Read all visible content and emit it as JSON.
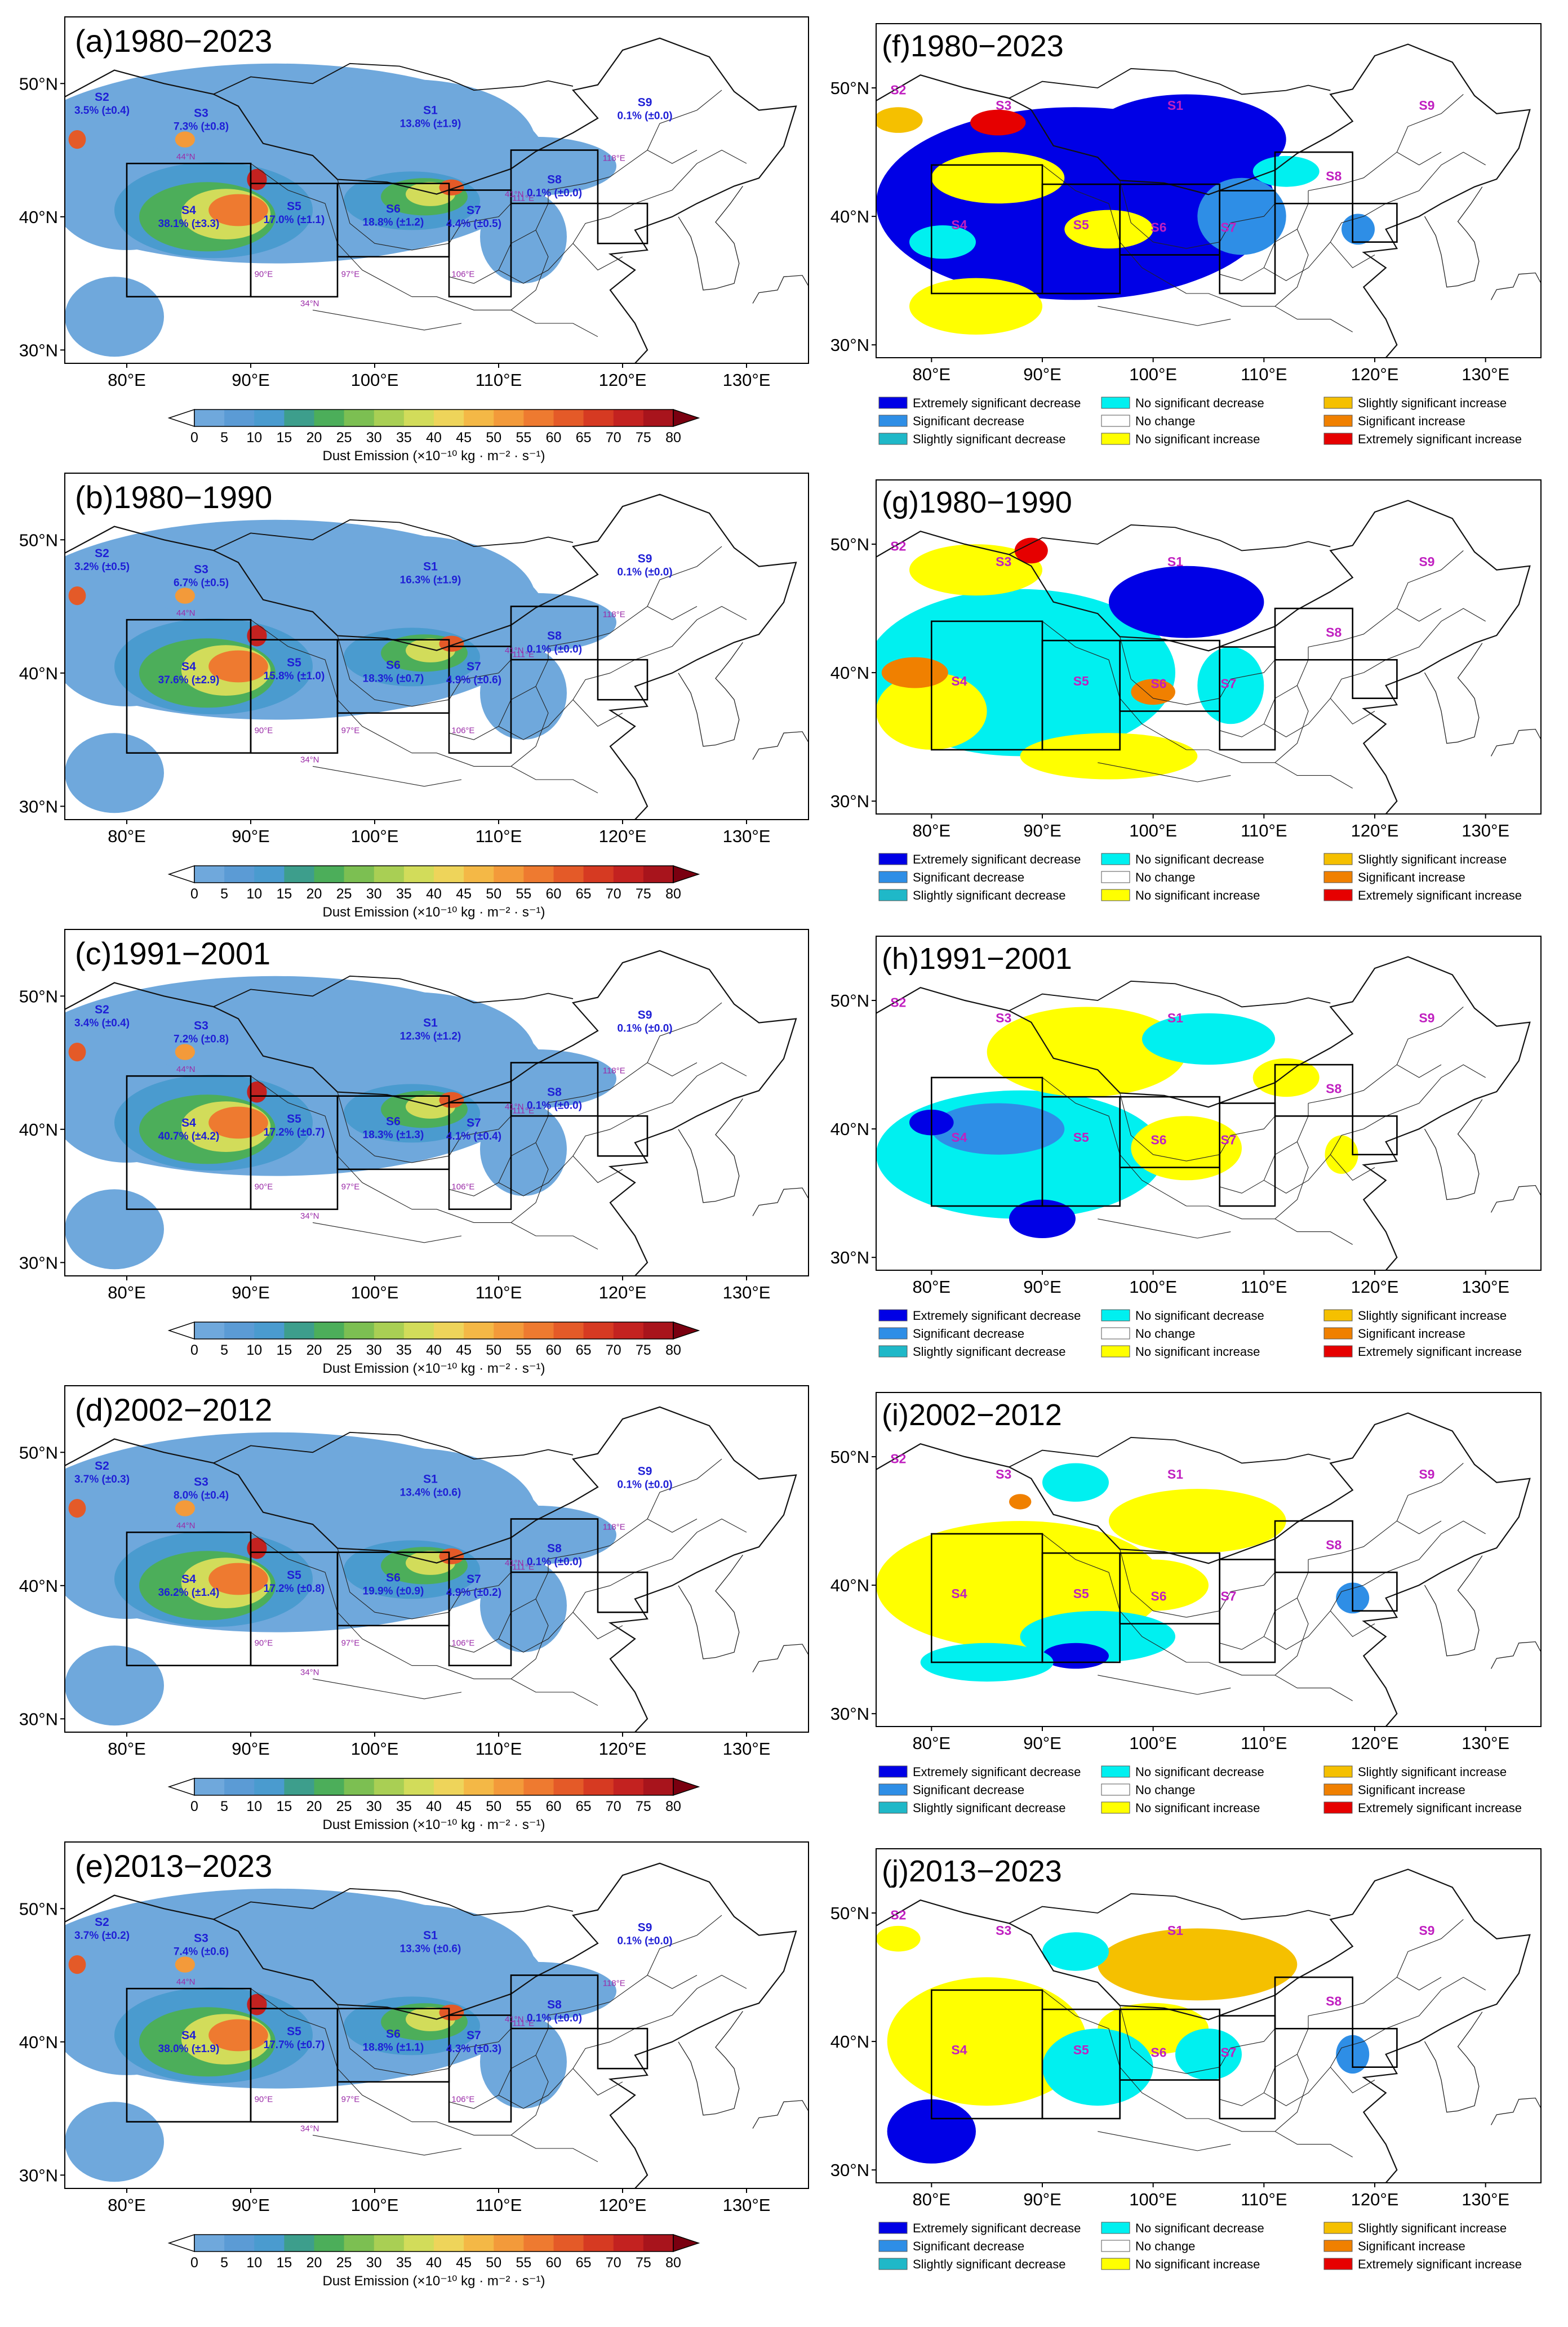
{
  "left_panels": [
    {
      "title": "(a)1980−2023",
      "regions": [
        {
          "name": "S1",
          "label": "13.8% (±1.9)"
        },
        {
          "name": "S2",
          "label": "3.5% (±0.4)"
        },
        {
          "name": "S3",
          "label": "7.3% (±0.8)"
        },
        {
          "name": "S4",
          "label": "38.1% (±3.3)"
        },
        {
          "name": "S5",
          "label": "17.0% (±1.1)"
        },
        {
          "name": "S6",
          "label": "18.8% (±1.2)"
        },
        {
          "name": "S7",
          "label": "4.4% (±0.5)"
        },
        {
          "name": "S8",
          "label": "0.1% (±0.0)"
        },
        {
          "name": "S9",
          "label": "0.1% (±0.0)"
        }
      ]
    },
    {
      "title": "(b)1980−1990",
      "regions": [
        {
          "name": "S1",
          "label": "16.3% (±1.9)"
        },
        {
          "name": "S2",
          "label": "3.2% (±0.5)"
        },
        {
          "name": "S3",
          "label": "6.7% (±0.5)"
        },
        {
          "name": "S4",
          "label": "37.6% (±2.9)"
        },
        {
          "name": "S5",
          "label": "15.8% (±1.0)"
        },
        {
          "name": "S6",
          "label": "18.3% (±0.7)"
        },
        {
          "name": "S7",
          "label": "4.9% (±0.6)"
        },
        {
          "name": "S8",
          "label": "0.1% (±0.0)"
        },
        {
          "name": "S9",
          "label": "0.1% (±0.0)"
        }
      ]
    },
    {
      "title": "(c)1991−2001",
      "regions": [
        {
          "name": "S1",
          "label": "12.3% (±1.2)"
        },
        {
          "name": "S2",
          "label": "3.4% (±0.4)"
        },
        {
          "name": "S3",
          "label": "7.2% (±0.8)"
        },
        {
          "name": "S4",
          "label": "40.7% (±4.2)"
        },
        {
          "name": "S5",
          "label": "17.2% (±0.7)"
        },
        {
          "name": "S6",
          "label": "18.3% (±1.3)"
        },
        {
          "name": "S7",
          "label": "4.1% (±0.4)"
        },
        {
          "name": "S8",
          "label": "0.1% (±0.0)"
        },
        {
          "name": "S9",
          "label": "0.1% (±0.0)"
        }
      ]
    },
    {
      "title": "(d)2002−2012",
      "regions": [
        {
          "name": "S1",
          "label": "13.4% (±0.6)"
        },
        {
          "name": "S2",
          "label": "3.7% (±0.3)"
        },
        {
          "name": "S3",
          "label": "8.0% (±0.4)"
        },
        {
          "name": "S4",
          "label": "36.2% (±1.4)"
        },
        {
          "name": "S5",
          "label": "17.2% (±0.8)"
        },
        {
          "name": "S6",
          "label": "19.9% (±0.9)"
        },
        {
          "name": "S7",
          "label": "4.9% (±0.2)"
        },
        {
          "name": "S8",
          "label": "0.1% (±0.0)"
        },
        {
          "name": "S9",
          "label": "0.1% (±0.0)"
        }
      ]
    },
    {
      "title": "(e)2013−2023",
      "regions": [
        {
          "name": "S1",
          "label": "13.3% (±0.6)"
        },
        {
          "name": "S2",
          "label": "3.7% (±0.2)"
        },
        {
          "name": "S3",
          "label": "7.4% (±0.6)"
        },
        {
          "name": "S4",
          "label": "38.0% (±1.9)"
        },
        {
          "name": "S5",
          "label": "17.7% (±0.7)"
        },
        {
          "name": "S6",
          "label": "18.8% (±1.1)"
        },
        {
          "name": "S7",
          "label": "4.3% (±0.3)"
        },
        {
          "name": "S8",
          "label": "0.1% (±0.0)"
        },
        {
          "name": "S9",
          "label": "0.1% (±0.0)"
        }
      ]
    }
  ],
  "right_panels": [
    {
      "title": "(f)1980−2023"
    },
    {
      "title": "(g)1980−1990"
    },
    {
      "title": "(h)1991−2001"
    },
    {
      "title": "(i)2002−2012"
    },
    {
      "title": "(j)2013−2023"
    }
  ],
  "right_region_names": [
    "S1",
    "S2",
    "S3",
    "S4",
    "S5",
    "S6",
    "S7",
    "S8",
    "S9"
  ],
  "boundary_labels": [
    "44°N",
    "41°N",
    "34°N",
    "90°E",
    "97°E",
    "106°E",
    "111°E",
    "118°E"
  ],
  "lat_ticks": [
    "30°N",
    "40°N",
    "50°N"
  ],
  "lon_ticks": [
    "80°E",
    "90°E",
    "100°E",
    "110°E",
    "120°E",
    "130°E"
  ],
  "colorbar": {
    "ticks": [
      "0",
      "5",
      "10",
      "15",
      "20",
      "25",
      "30",
      "35",
      "40",
      "45",
      "50",
      "55",
      "60",
      "65",
      "70",
      "75",
      "80"
    ],
    "label": "Dust Emission (×10⁻¹⁰ kg · m⁻² · s⁻¹)",
    "colors": [
      "#6fa8dc",
      "#5b9bd5",
      "#4a9bcf",
      "#3d9e8c",
      "#4cae5a",
      "#7cbf52",
      "#a9cf54",
      "#d2dc5a",
      "#eed45a",
      "#f4b846",
      "#f39a3a",
      "#ee7a30",
      "#e45a28",
      "#d63a22",
      "#c32220",
      "#a8141c"
    ]
  },
  "legend": {
    "items": [
      {
        "label": "Extremely significant decrease",
        "color": "#0000e6"
      },
      {
        "label": "Significant decrease",
        "color": "#2e8ee6"
      },
      {
        "label": "Slightly significant decrease",
        "color": "#1fb8c8"
      },
      {
        "label": "No significant decrease",
        "color": "#00f0f0"
      },
      {
        "label": "No change",
        "color": "#ffffff"
      },
      {
        "label": "No significant increase",
        "color": "#ffff00"
      },
      {
        "label": "Slightly significant increase",
        "color": "#f5c000"
      },
      {
        "label": "Significant increase",
        "color": "#f08000"
      },
      {
        "label": "Extremely significant increase",
        "color": "#e60000"
      }
    ]
  },
  "colors": {
    "region_label": "#1f1fd6",
    "region_name_right": "#c020c0",
    "boundary_label": "#9b2ca8"
  }
}
